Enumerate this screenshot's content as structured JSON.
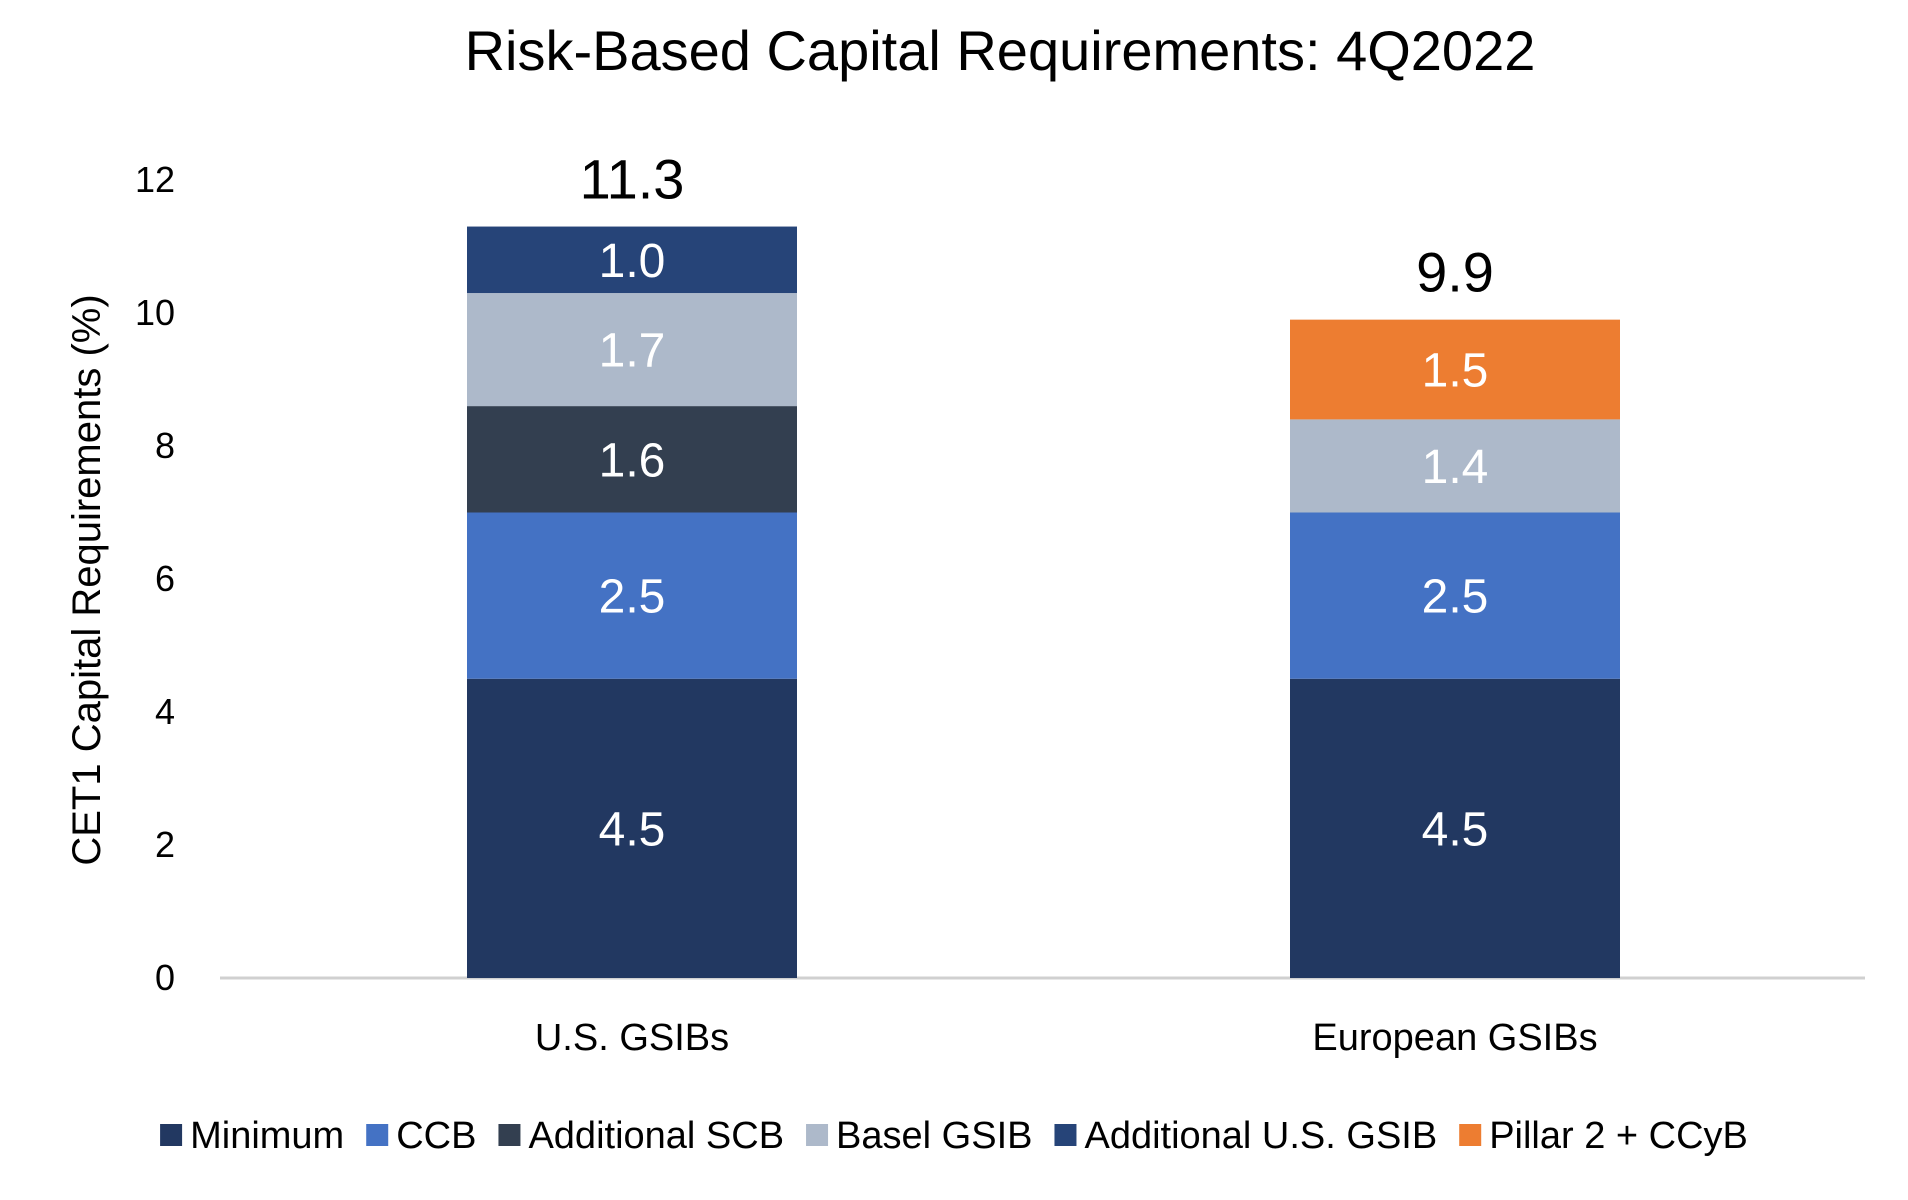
{
  "chart_data": {
    "type": "bar",
    "stacked": true,
    "title": "Risk-Based Capital Requirements: 4Q2022",
    "xlabel": "",
    "ylabel": "CET1 Capital Requirements (%)",
    "ylim": [
      0,
      12
    ],
    "yticks": [
      "0",
      "2",
      "4",
      "6",
      "8",
      "10",
      "12"
    ],
    "categories": [
      "U.S. GSIBs",
      "European GSIBs"
    ],
    "grid": false,
    "legend_position": "bottom",
    "series": [
      {
        "name": "Minimum",
        "color": "#223861",
        "values": [
          4.5,
          4.5
        ],
        "labels": [
          "4.5",
          "4.5"
        ]
      },
      {
        "name": "CCB",
        "color": "#4472C4",
        "values": [
          2.5,
          2.5
        ],
        "labels": [
          "2.5",
          "2.5"
        ]
      },
      {
        "name": "Additional SCB",
        "color": "#333F50",
        "values": [
          1.6,
          0
        ],
        "labels": [
          "1.6",
          ""
        ]
      },
      {
        "name": "Basel GSIB",
        "color": "#ADB9CA",
        "values": [
          1.7,
          1.4
        ],
        "labels": [
          "1.7",
          "1.4"
        ]
      },
      {
        "name": "Additional U.S. GSIB",
        "color": "#264478",
        "values": [
          1.0,
          0
        ],
        "labels": [
          "1.0",
          ""
        ]
      },
      {
        "name": "Pillar 2 + CCyB",
        "color": "#ED7D31",
        "values": [
          0,
          1.5
        ],
        "labels": [
          "",
          "1.5"
        ]
      }
    ],
    "totals": [
      "11.3",
      "9.9"
    ]
  }
}
